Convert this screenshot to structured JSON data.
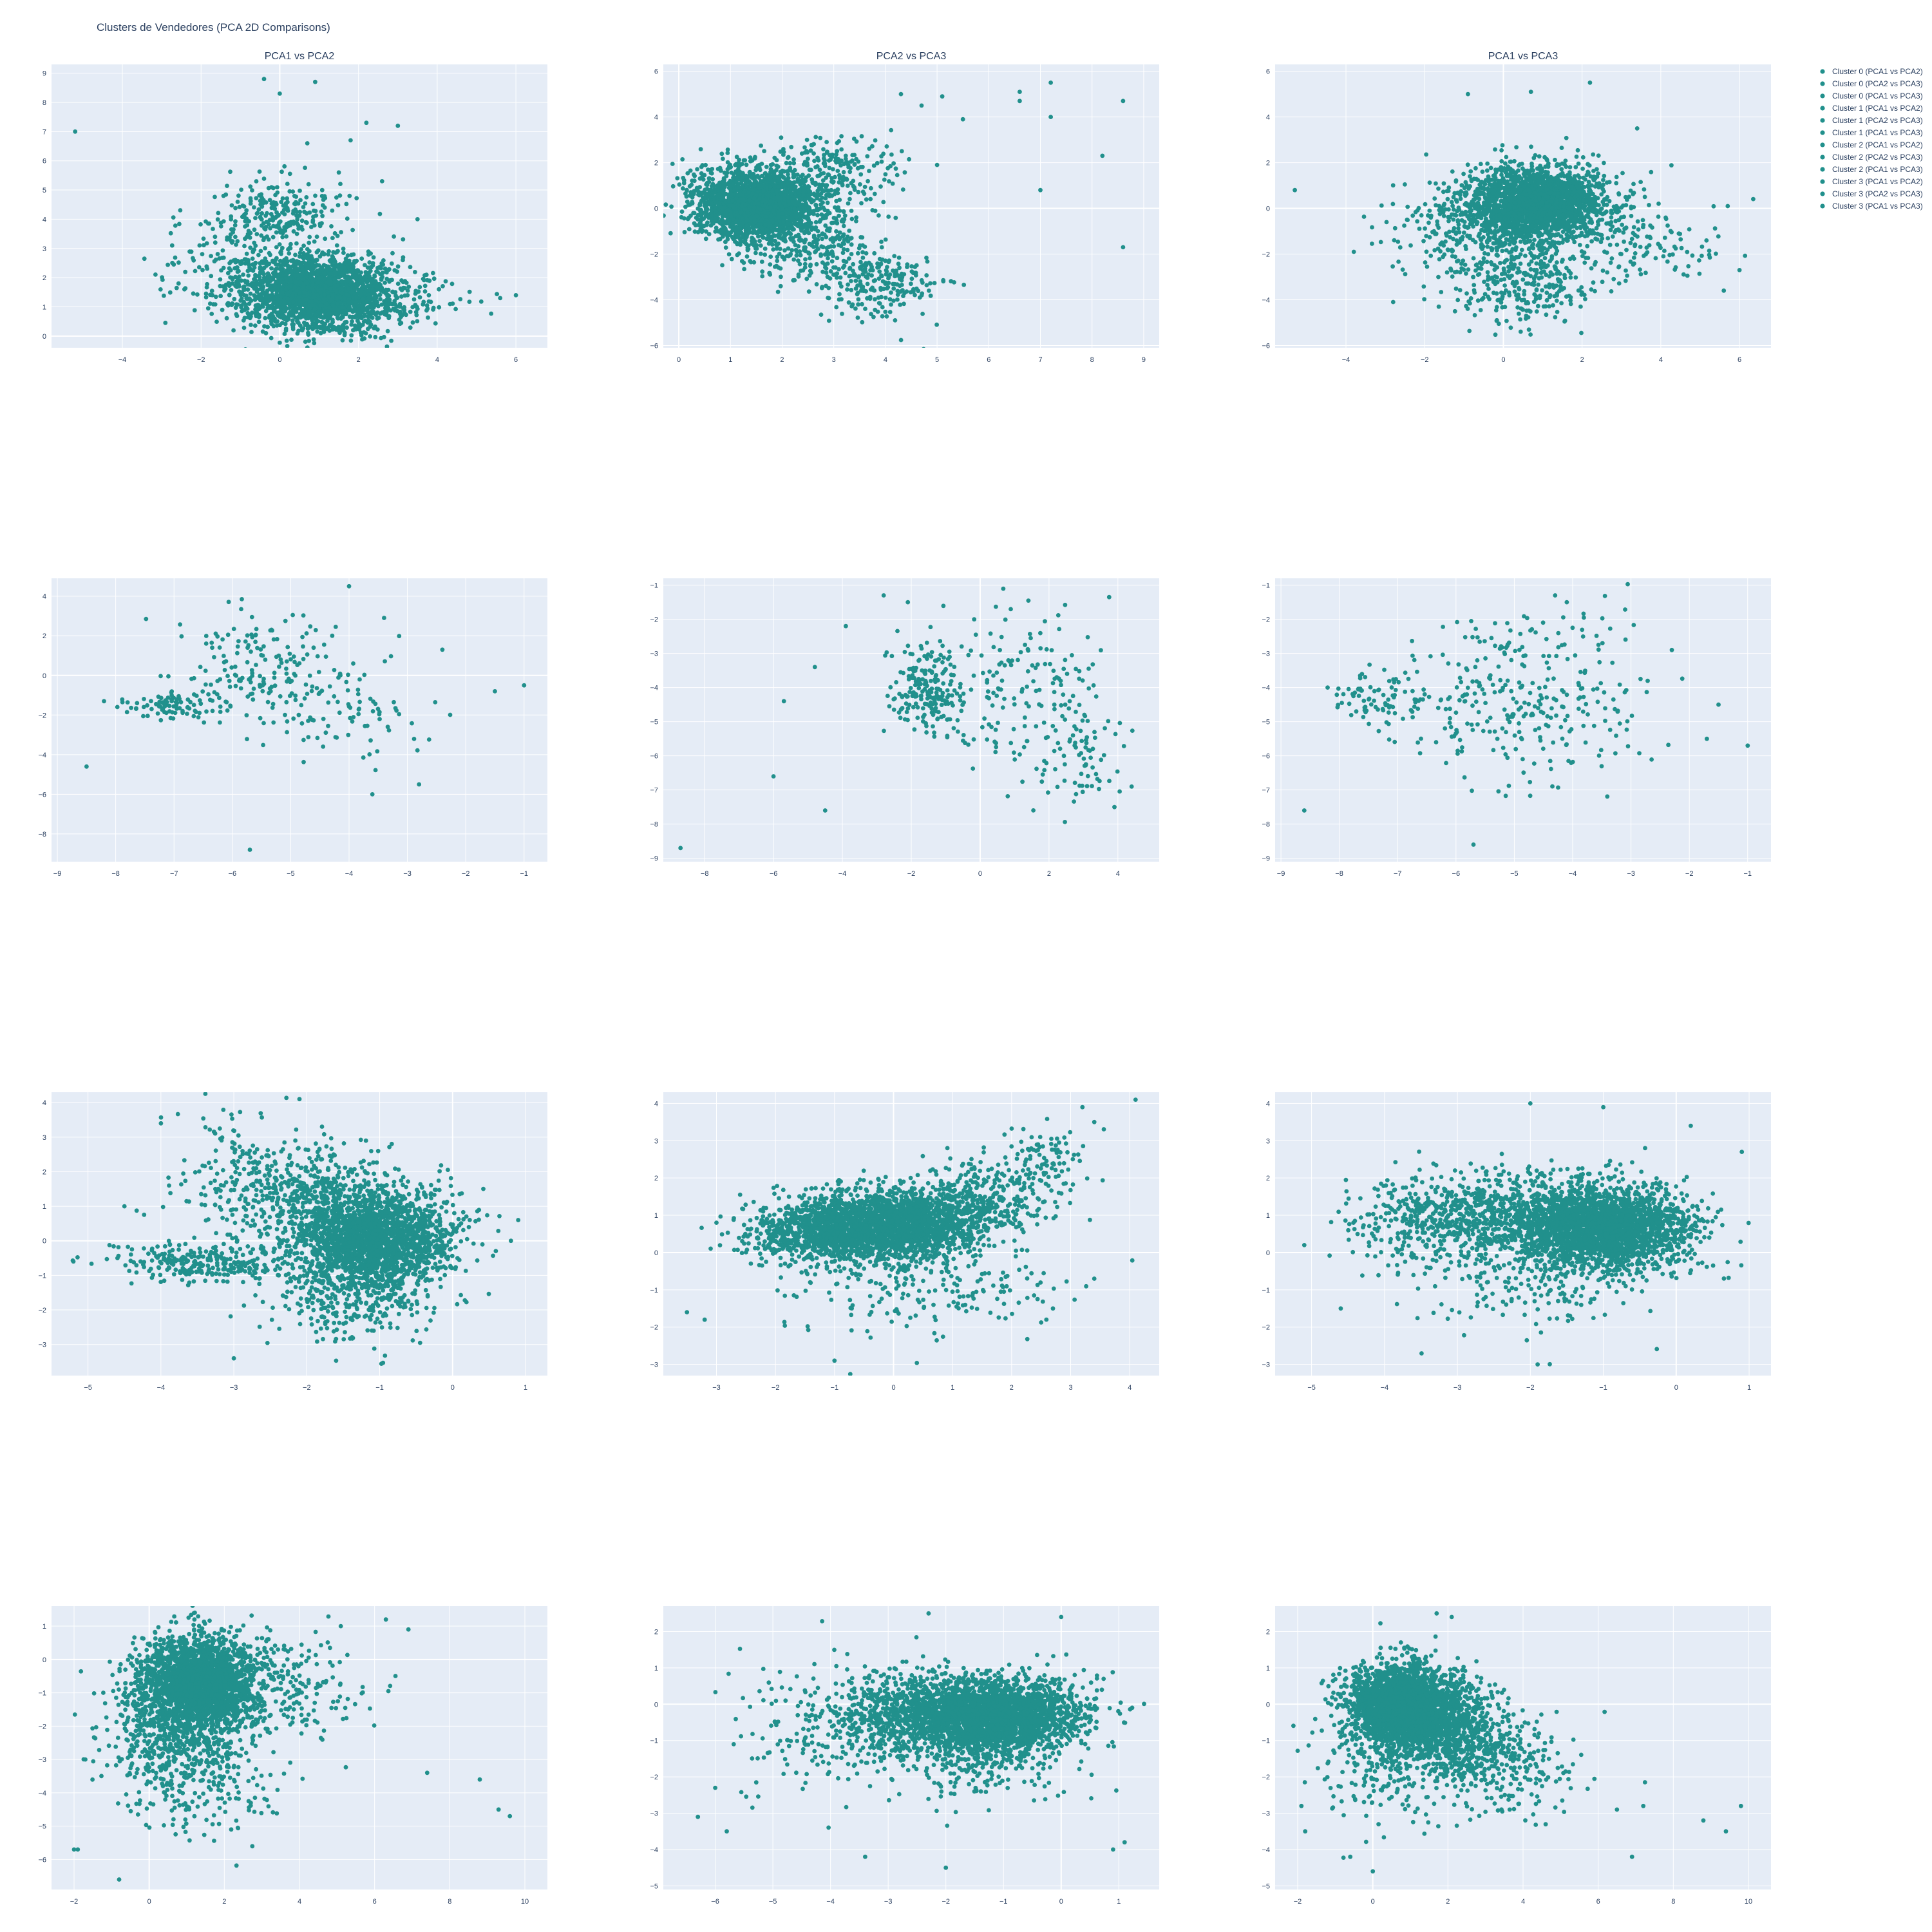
{
  "figure": {
    "title": "Clusters de Vendedores (PCA 2D Comparisons)",
    "colors": {
      "plot_bg": "#E5ECF6",
      "grid": "#FFFFFF",
      "marker": "#21908C",
      "text": "#2a3f5f"
    }
  },
  "legend": {
    "placement": "top-right, outside plot area",
    "items": [
      "Cluster 0 (PCA1 vs PCA2)",
      "Cluster 0 (PCA2 vs PCA3)",
      "Cluster 0 (PCA1 vs PCA3)",
      "Cluster 1 (PCA1 vs PCA2)",
      "Cluster 1 (PCA2 vs PCA3)",
      "Cluster 1 (PCA1 vs PCA3)",
      "Cluster 2 (PCA1 vs PCA2)",
      "Cluster 2 (PCA2 vs PCA3)",
      "Cluster 2 (PCA1 vs PCA3)",
      "Cluster 3 (PCA1 vs PCA2)",
      "Cluster 3 (PCA2 vs PCA3)",
      "Cluster 3 (PCA1 vs PCA3)"
    ]
  },
  "chart_data": [
    {
      "type": "scatter",
      "id": "r0c0",
      "row": 0,
      "col": 0,
      "title": "PCA1 vs PCA2",
      "series_name": "Cluster 0 (PCA1 vs PCA2)",
      "xlim": [
        -5.8,
        6.8
      ],
      "ylim": [
        -0.4,
        9.3
      ],
      "grid": true,
      "xticks": [
        -4,
        -2,
        0,
        2,
        4,
        6
      ],
      "yticks": [
        0,
        1,
        2,
        3,
        4,
        5,
        6,
        7,
        8,
        9
      ],
      "clusters": [
        {
          "cx": 0.9,
          "cy": 1.5,
          "sx": 0.9,
          "sy": 0.65,
          "n": 2200
        },
        {
          "cx": 0.1,
          "cy": 4.2,
          "sx": 0.8,
          "sy": 0.55,
          "n": 220
        },
        {
          "cx": 2.6,
          "cy": 1.3,
          "sx": 1.0,
          "sy": 0.4,
          "n": 180
        },
        {
          "cx": -1.5,
          "cy": 2.6,
          "sx": 0.8,
          "sy": 0.8,
          "n": 140
        }
      ],
      "outliers": [
        [
          -5.2,
          7.0
        ],
        [
          -0.4,
          8.8
        ],
        [
          0.9,
          8.7
        ],
        [
          0.0,
          8.3
        ],
        [
          2.2,
          7.3
        ],
        [
          3.0,
          7.2
        ],
        [
          1.8,
          6.7
        ],
        [
          0.7,
          6.6
        ],
        [
          2.6,
          5.3
        ],
        [
          6.0,
          1.4
        ],
        [
          5.6,
          1.3
        ],
        [
          3.5,
          4.0
        ],
        [
          1.5,
          5.6
        ]
      ]
    },
    {
      "type": "scatter",
      "id": "r0c1",
      "row": 0,
      "col": 1,
      "title": "PCA2 vs PCA3",
      "series_name": "Cluster 0 (PCA2 vs PCA3)",
      "xlim": [
        -0.3,
        9.3
      ],
      "ylim": [
        -6.1,
        6.3
      ],
      "grid": true,
      "xticks": [
        0,
        1,
        2,
        3,
        4,
        5,
        6,
        7,
        8,
        9
      ],
      "yticks": [
        -6,
        -4,
        -2,
        0,
        2,
        4,
        6
      ],
      "clusters": [
        {
          "cx": 1.5,
          "cy": 0.2,
          "sx": 0.6,
          "sy": 0.8,
          "n": 2100
        },
        {
          "cx": 2.4,
          "cy": -1.5,
          "sx": 0.7,
          "sy": 0.9,
          "n": 260
        },
        {
          "cx": 3.9,
          "cy": -3.2,
          "sx": 0.6,
          "sy": 0.8,
          "n": 230
        },
        {
          "cx": 3.0,
          "cy": 1.6,
          "sx": 0.6,
          "sy": 0.8,
          "n": 200
        }
      ],
      "outliers": [
        [
          4.3,
          5.0
        ],
        [
          4.7,
          4.5
        ],
        [
          5.1,
          4.9
        ],
        [
          5.5,
          3.9
        ],
        [
          6.6,
          5.1
        ],
        [
          7.2,
          5.5
        ],
        [
          7.0,
          0.8
        ],
        [
          8.2,
          2.3
        ],
        [
          8.6,
          4.7
        ],
        [
          8.6,
          -1.7
        ],
        [
          6.6,
          4.7
        ],
        [
          7.2,
          4.0
        ],
        [
          5.0,
          1.9
        ]
      ]
    },
    {
      "type": "scatter",
      "id": "r0c2",
      "row": 0,
      "col": 2,
      "title": "PCA1 vs PCA3",
      "series_name": "Cluster 0 (PCA1 vs PCA3)",
      "xlim": [
        -5.8,
        6.8
      ],
      "ylim": [
        -6.1,
        6.3
      ],
      "grid": true,
      "xticks": [
        -4,
        -2,
        0,
        2,
        4,
        6
      ],
      "yticks": [
        -6,
        -4,
        -2,
        0,
        2,
        4,
        6
      ],
      "clusters": [
        {
          "cx": 0.8,
          "cy": 0.2,
          "sx": 0.9,
          "sy": 0.8,
          "n": 2100
        },
        {
          "cx": 0.5,
          "cy": -2.8,
          "sx": 0.9,
          "sy": 1.1,
          "n": 380
        },
        {
          "cx": -1.2,
          "cy": -1.0,
          "sx": 0.9,
          "sy": 0.9,
          "n": 180
        },
        {
          "cx": 3.5,
          "cy": -1.5,
          "sx": 1.0,
          "sy": 1.0,
          "n": 120
        }
      ],
      "outliers": [
        [
          -5.3,
          0.8
        ],
        [
          -0.9,
          5.0
        ],
        [
          0.7,
          5.1
        ],
        [
          2.2,
          5.5
        ],
        [
          3.4,
          3.5
        ],
        [
          5.7,
          0.1
        ],
        [
          5.6,
          -3.6
        ],
        [
          6.0,
          -2.7
        ],
        [
          -3.8,
          -1.9
        ],
        [
          -2.8,
          -4.1
        ]
      ]
    },
    {
      "type": "scatter",
      "id": "r1c0",
      "row": 1,
      "col": 0,
      "series_name": "Cluster 1 (PCA1 vs PCA2)",
      "xlim": [
        -9.1,
        -0.6
      ],
      "ylim": [
        -9.4,
        4.9
      ],
      "grid": true,
      "xticks": [
        -9,
        -8,
        -7,
        -6,
        -5,
        -4,
        -3,
        -2,
        -1
      ],
      "yticks": [
        -8,
        -6,
        -4,
        -2,
        0,
        2,
        4
      ],
      "clusters": [
        {
          "cx": -7.0,
          "cy": -1.6,
          "sx": 0.45,
          "sy": 0.3,
          "n": 90
        },
        {
          "cx": -5.5,
          "cy": 0.3,
          "sx": 0.7,
          "sy": 1.3,
          "n": 170
        },
        {
          "cx": -4.0,
          "cy": -1.8,
          "sx": 0.8,
          "sy": 1.3,
          "n": 80
        }
      ],
      "outliers": [
        [
          -8.5,
          -4.6
        ],
        [
          -5.7,
          -8.8
        ],
        [
          -4.0,
          4.5
        ],
        [
          -3.4,
          2.9
        ],
        [
          -2.4,
          1.3
        ],
        [
          -1.5,
          -0.8
        ],
        [
          -1.0,
          -0.5
        ],
        [
          -3.6,
          -6.0
        ],
        [
          -2.8,
          -5.5
        ],
        [
          -8.2,
          -1.3
        ]
      ]
    },
    {
      "type": "scatter",
      "id": "r1c1",
      "row": 1,
      "col": 1,
      "series_name": "Cluster 1 (PCA2 vs PCA3)",
      "xlim": [
        -9.2,
        5.2
      ],
      "ylim": [
        -9.1,
        -0.8
      ],
      "grid": true,
      "xticks": [
        -8,
        -6,
        -4,
        -2,
        0,
        2,
        4
      ],
      "yticks": [
        -9,
        -8,
        -7,
        -6,
        -5,
        -4,
        -3,
        -2,
        -1
      ],
      "clusters": [
        {
          "cx": -1.5,
          "cy": -4.0,
          "sx": 0.5,
          "sy": 0.7,
          "n": 210
        },
        {
          "cx": 1.2,
          "cy": -4.0,
          "sx": 1.2,
          "sy": 1.3,
          "n": 160
        },
        {
          "cx": 3.0,
          "cy": -6.0,
          "sx": 0.6,
          "sy": 0.7,
          "n": 60
        }
      ],
      "outliers": [
        [
          -8.7,
          -8.7
        ],
        [
          -6.0,
          -6.6
        ],
        [
          -4.5,
          -7.6
        ],
        [
          -2.8,
          -1.3
        ],
        [
          -2.1,
          -1.5
        ],
        [
          -3.9,
          -2.2
        ],
        [
          -5.7,
          -4.4
        ],
        [
          4.4,
          -6.9
        ],
        [
          3.9,
          -7.5
        ],
        [
          -4.8,
          -3.4
        ]
      ]
    },
    {
      "type": "scatter",
      "id": "r1c2",
      "row": 1,
      "col": 2,
      "series_name": "Cluster 1 (PCA1 vs PCA3)",
      "xlim": [
        -9.1,
        -0.6
      ],
      "ylim": [
        -9.1,
        -0.8
      ],
      "grid": true,
      "xticks": [
        -9,
        -8,
        -7,
        -6,
        -5,
        -4,
        -3,
        -2,
        -1
      ],
      "yticks": [
        -9,
        -8,
        -7,
        -6,
        -5,
        -4,
        -3,
        -2,
        -1
      ],
      "clusters": [
        {
          "cx": -7.3,
          "cy": -4.3,
          "sx": 0.45,
          "sy": 0.35,
          "n": 80
        },
        {
          "cx": -5.3,
          "cy": -4.4,
          "sx": 0.9,
          "sy": 1.2,
          "n": 230
        },
        {
          "cx": -3.6,
          "cy": -4.0,
          "sx": 0.6,
          "sy": 1.3,
          "n": 80
        }
      ],
      "outliers": [
        [
          -8.6,
          -7.6
        ],
        [
          -5.7,
          -8.6
        ],
        [
          -4.3,
          -1.3
        ],
        [
          -4.1,
          -1.5
        ],
        [
          -1.5,
          -4.5
        ],
        [
          -1.0,
          -5.7
        ],
        [
          -1.7,
          -5.5
        ],
        [
          -2.3,
          -2.9
        ],
        [
          -8.2,
          -4.0
        ]
      ]
    },
    {
      "type": "scatter",
      "id": "r2c0",
      "row": 2,
      "col": 0,
      "series_name": "Cluster 2 (PCA1 vs PCA2)",
      "xlim": [
        -5.5,
        1.3
      ],
      "ylim": [
        -3.9,
        4.3
      ],
      "grid": true,
      "xticks": [
        -5,
        -4,
        -3,
        -2,
        -1,
        0,
        1
      ],
      "yticks": [
        -3,
        -2,
        -1,
        0,
        1,
        2,
        3,
        4
      ],
      "clusters": [
        {
          "cx": -1.1,
          "cy": 0.1,
          "sx": 0.55,
          "sy": 0.7,
          "n": 2100
        },
        {
          "cx": -2.0,
          "cy": 1.4,
          "sx": 0.6,
          "sy": 0.7,
          "n": 420
        },
        {
          "cx": -3.4,
          "cy": -0.6,
          "sx": 0.6,
          "sy": 0.3,
          "n": 280
        },
        {
          "cx": -1.3,
          "cy": -1.6,
          "sx": 0.6,
          "sy": 0.7,
          "n": 330
        },
        {
          "cx": -3.0,
          "cy": 2.0,
          "sx": 0.5,
          "sy": 0.8,
          "n": 110
        }
      ],
      "outliers": [
        [
          -5.2,
          -0.6
        ],
        [
          -2.1,
          4.1
        ],
        [
          0.9,
          0.6
        ],
        [
          0.8,
          0.0
        ],
        [
          -4.0,
          3.4
        ],
        [
          -3.0,
          -3.4
        ],
        [
          -4.5,
          1.0
        ]
      ]
    },
    {
      "type": "scatter",
      "id": "r2c1",
      "row": 2,
      "col": 1,
      "series_name": "Cluster 2 (PCA2 vs PCA3)",
      "xlim": [
        -3.9,
        4.5
      ],
      "ylim": [
        -3.3,
        4.3
      ],
      "grid": true,
      "xticks": [
        -3,
        -2,
        -1,
        0,
        1,
        2,
        3,
        4
      ],
      "yticks": [
        -3,
        -2,
        -1,
        0,
        1,
        2,
        3,
        4
      ],
      "clusters": [
        {
          "cx": -0.2,
          "cy": 0.7,
          "sx": 0.8,
          "sy": 0.45,
          "n": 2200
        },
        {
          "cx": 1.3,
          "cy": 1.3,
          "sx": 0.6,
          "sy": 0.5,
          "n": 420
        },
        {
          "cx": 2.5,
          "cy": 2.4,
          "sx": 0.4,
          "sy": 0.5,
          "n": 100
        },
        {
          "cx": -1.4,
          "cy": 0.5,
          "sx": 0.7,
          "sy": 0.4,
          "n": 420
        },
        {
          "cx": 0.3,
          "cy": -0.8,
          "sx": 1.2,
          "sy": 0.7,
          "n": 220
        }
      ],
      "outliers": [
        [
          4.1,
          4.1
        ],
        [
          3.2,
          3.9
        ],
        [
          3.4,
          3.5
        ],
        [
          -3.5,
          -1.6
        ],
        [
          -3.2,
          -1.8
        ],
        [
          -1.0,
          -2.9
        ],
        [
          3.4,
          -0.7
        ],
        [
          2.7,
          -1.5
        ],
        [
          -3.0,
          0.8
        ]
      ]
    },
    {
      "type": "scatter",
      "id": "r2c2",
      "row": 2,
      "col": 2,
      "series_name": "Cluster 2 (PCA1 vs PCA3)",
      "xlim": [
        -5.5,
        1.3
      ],
      "ylim": [
        -3.3,
        4.3
      ],
      "grid": true,
      "xticks": [
        -5,
        -4,
        -3,
        -2,
        -1,
        0,
        1
      ],
      "yticks": [
        -3,
        -2,
        -1,
        0,
        1,
        2,
        3,
        4
      ],
      "clusters": [
        {
          "cx": -1.0,
          "cy": 0.7,
          "sx": 0.6,
          "sy": 0.55,
          "n": 2300
        },
        {
          "cx": -2.3,
          "cy": 1.0,
          "sx": 0.7,
          "sy": 0.6,
          "n": 700
        },
        {
          "cx": -3.6,
          "cy": 0.9,
          "sx": 0.5,
          "sy": 0.5,
          "n": 220
        },
        {
          "cx": -2.0,
          "cy": -0.6,
          "sx": 0.9,
          "sy": 0.8,
          "n": 250
        }
      ],
      "outliers": [
        [
          -5.1,
          0.2
        ],
        [
          -2.0,
          4.0
        ],
        [
          -1.0,
          3.9
        ],
        [
          0.9,
          2.7
        ],
        [
          0.2,
          3.4
        ],
        [
          -4.6,
          -1.5
        ],
        [
          -1.9,
          -3.0
        ]
      ]
    },
    {
      "type": "scatter",
      "id": "r3c0",
      "row": 3,
      "col": 0,
      "series_name": "Cluster 3 (PCA1 vs PCA2)",
      "xlim": [
        -2.6,
        10.6
      ],
      "ylim": [
        -6.9,
        1.6
      ],
      "grid": true,
      "xticks": [
        -2,
        0,
        2,
        4,
        6,
        8,
        10
      ],
      "yticks": [
        -6,
        -5,
        -4,
        -3,
        -2,
        -1,
        0,
        1
      ],
      "clusters": [
        {
          "cx": 1.3,
          "cy": -0.7,
          "sx": 0.8,
          "sy": 0.7,
          "n": 2300
        },
        {
          "cx": 0.7,
          "cy": -2.5,
          "sx": 0.9,
          "sy": 0.9,
          "n": 550
        },
        {
          "cx": 3.5,
          "cy": -1.0,
          "sx": 1.2,
          "sy": 0.9,
          "n": 220
        },
        {
          "cx": 1.5,
          "cy": -4.2,
          "sx": 1.0,
          "sy": 0.8,
          "n": 90
        }
      ],
      "outliers": [
        [
          -1.9,
          -5.7
        ],
        [
          -2.0,
          -5.7
        ],
        [
          -0.8,
          -6.6
        ],
        [
          9.3,
          -4.5
        ],
        [
          9.6,
          -4.7
        ],
        [
          8.8,
          -3.6
        ],
        [
          6.3,
          1.2
        ],
        [
          6.9,
          0.9
        ],
        [
          5.1,
          1.0
        ],
        [
          7.4,
          -3.4
        ],
        [
          -1.7,
          -3.0
        ]
      ]
    },
    {
      "type": "scatter",
      "id": "r3c1",
      "row": 3,
      "col": 1,
      "series_name": "Cluster 3 (PCA2 vs PCA3)",
      "xlim": [
        -6.9,
        1.7
      ],
      "ylim": [
        -5.1,
        2.7
      ],
      "grid": true,
      "xticks": [
        -6,
        -5,
        -4,
        -3,
        -2,
        -1,
        0,
        1
      ],
      "yticks": [
        -5,
        -4,
        -3,
        -2,
        -1,
        0,
        1,
        2
      ],
      "clusters": [
        {
          "cx": -1.2,
          "cy": -0.3,
          "sx": 0.75,
          "sy": 0.5,
          "n": 2600
        },
        {
          "cx": -2.8,
          "cy": -0.2,
          "sx": 0.6,
          "sy": 0.6,
          "n": 500
        },
        {
          "cx": -1.5,
          "cy": -1.3,
          "sx": 0.8,
          "sy": 0.7,
          "n": 350
        },
        {
          "cx": -4.3,
          "cy": -0.8,
          "sx": 0.7,
          "sy": 1.0,
          "n": 150
        }
      ],
      "outliers": [
        [
          -6.3,
          -3.1
        ],
        [
          -5.8,
          -3.5
        ],
        [
          -6.0,
          -2.3
        ],
        [
          -3.4,
          -4.2
        ],
        [
          -2.0,
          -4.5
        ],
        [
          0.9,
          -4.0
        ],
        [
          1.1,
          -3.8
        ],
        [
          -2.3,
          2.5
        ],
        [
          0.0,
          2.4
        ]
      ]
    },
    {
      "type": "scatter",
      "id": "r3c2",
      "row": 3,
      "col": 2,
      "series_name": "Cluster 3 (PCA1 vs PCA3)",
      "xlim": [
        -2.6,
        10.6
      ],
      "ylim": [
        -5.1,
        2.7
      ],
      "grid": true,
      "xticks": [
        -2,
        0,
        2,
        4,
        6,
        8,
        10
      ],
      "yticks": [
        -5,
        -4,
        -3,
        -2,
        -1,
        0,
        1,
        2
      ],
      "clusters": [
        {
          "cx": 0.8,
          "cy": 0.0,
          "sx": 0.75,
          "sy": 0.55,
          "n": 2400
        },
        {
          "cx": 2.0,
          "cy": -0.8,
          "sx": 0.8,
          "sy": 0.6,
          "n": 700
        },
        {
          "cx": 3.4,
          "cy": -1.6,
          "sx": 1.0,
          "sy": 0.7,
          "n": 250
        },
        {
          "cx": 0.3,
          "cy": -1.6,
          "sx": 0.8,
          "sy": 0.9,
          "n": 200
        }
      ],
      "outliers": [
        [
          -1.9,
          -2.8
        ],
        [
          -1.8,
          -3.5
        ],
        [
          -0.6,
          -4.2
        ],
        [
          0.0,
          -4.6
        ],
        [
          9.8,
          -2.8
        ],
        [
          9.4,
          -3.5
        ],
        [
          8.8,
          -3.2
        ],
        [
          7.2,
          -2.8
        ],
        [
          6.5,
          -2.9
        ],
        [
          2.1,
          2.4
        ],
        [
          1.7,
          2.5
        ],
        [
          6.9,
          -4.2
        ]
      ]
    }
  ]
}
